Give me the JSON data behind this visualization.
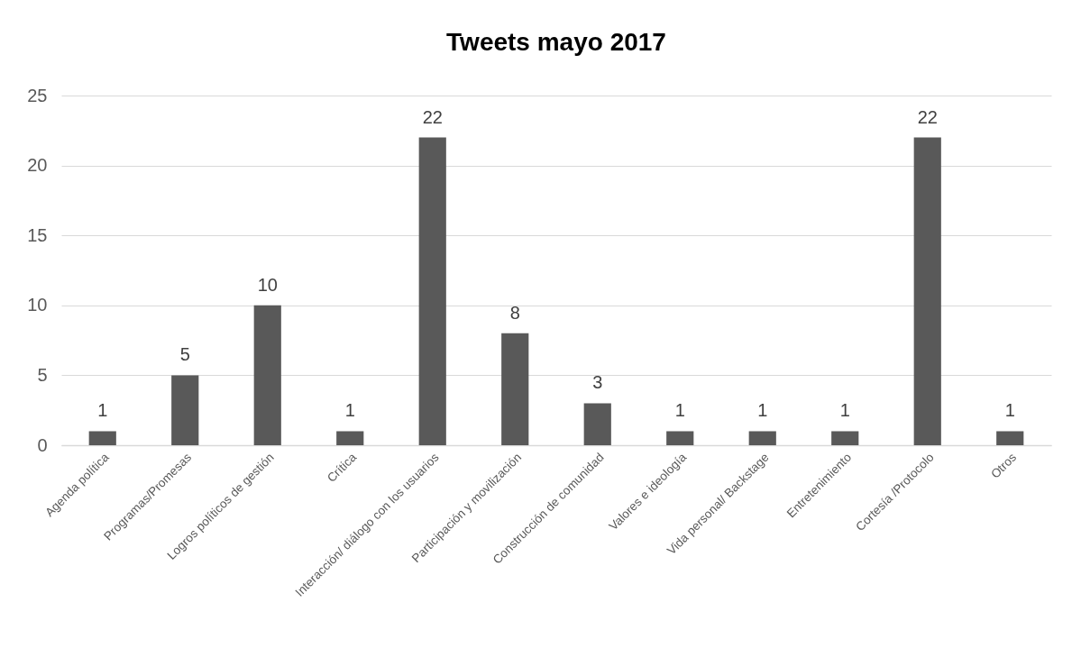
{
  "chart_data": {
    "type": "bar",
    "title": "Tweets mayo 2017",
    "categories": [
      "Agenda política",
      "Programas/Promesas",
      "Logros políticos de gestión",
      "Crítica",
      "Interacción/ diálogo con los usuarios",
      "Participación y movilización",
      "Construcción de comunidad",
      "Valores e ideología",
      "Vida personal/ Backstage",
      "Entretenimiento",
      "Cortesía /Protocolo",
      "Otros"
    ],
    "values": [
      1,
      5,
      10,
      1,
      22,
      8,
      3,
      1,
      1,
      1,
      22,
      1
    ],
    "color": "#595959",
    "ylim": [
      0,
      25
    ],
    "yticks": [
      0,
      5,
      10,
      15,
      20,
      25
    ],
    "grid": "y",
    "data_labels": true
  }
}
